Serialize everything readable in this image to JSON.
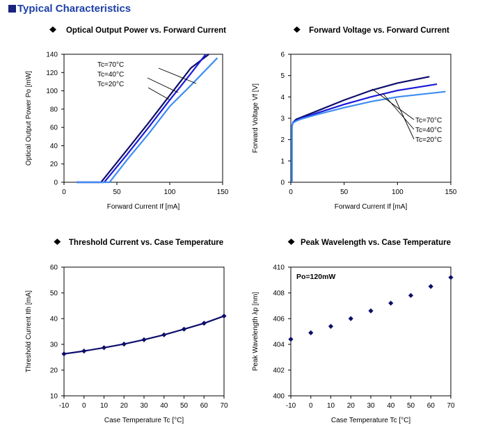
{
  "page": {
    "heading": "Typical Characteristics"
  },
  "colors": {
    "dark": "#0d0d6b",
    "mid": "#1a1ad9",
    "light": "#3d8df0",
    "marker": "#0d0d6b"
  },
  "chart_data": [
    {
      "type": "line",
      "title": "Optical Output Power vs. Forward Current",
      "xlabel": "Forward Current If [mA]",
      "ylabel": "Optical Output Power Po [mW]",
      "xlim": [
        0,
        150
      ],
      "ylim": [
        0,
        140
      ],
      "xticks": [
        0,
        50,
        100,
        150
      ],
      "yticks": [
        0,
        20,
        40,
        60,
        80,
        100,
        120,
        140
      ],
      "series": [
        {
          "name": "Tc=70°C",
          "x": [
            12,
            35,
            60,
            80,
            100,
            120,
            137
          ],
          "y": [
            0,
            0,
            36,
            65,
            95,
            125,
            140
          ]
        },
        {
          "name": "Tc=40°C",
          "x": [
            12,
            38,
            60,
            80,
            100,
            120,
            134
          ],
          "y": [
            0,
            0,
            31,
            60,
            90,
            119,
            140
          ]
        },
        {
          "name": "Tc=20°C",
          "x": [
            12,
            43,
            60,
            80,
            100,
            120,
            145
          ],
          "y": [
            0,
            0,
            25,
            53,
            83,
            106,
            136
          ]
        }
      ]
    },
    {
      "type": "line",
      "title": "Forward Voltage vs. Forward Current",
      "xlabel": "Forward Current If [mA]",
      "ylabel": "Forward Voltage Vf [V]",
      "xlim": [
        0,
        150
      ],
      "ylim": [
        0,
        6
      ],
      "xticks": [
        0,
        50,
        100,
        150
      ],
      "yticks": [
        0,
        1,
        2,
        3,
        4,
        5,
        6
      ],
      "series": [
        {
          "name": "Tc=70°C",
          "x": [
            1,
            1,
            2,
            5,
            10,
            25,
            50,
            75,
            100,
            130
          ],
          "y": [
            0,
            2.6,
            2.8,
            2.95,
            3.05,
            3.35,
            3.85,
            4.3,
            4.65,
            4.95
          ]
        },
        {
          "name": "Tc=40°C",
          "x": [
            1,
            1,
            2,
            5,
            10,
            25,
            50,
            75,
            100,
            137
          ],
          "y": [
            0,
            2.6,
            2.8,
            2.9,
            3.0,
            3.25,
            3.65,
            4.0,
            4.3,
            4.6
          ]
        },
        {
          "name": "Tc=20°C",
          "x": [
            1,
            1,
            2,
            5,
            10,
            25,
            50,
            75,
            100,
            145
          ],
          "y": [
            0,
            2.6,
            2.78,
            2.87,
            2.97,
            3.18,
            3.5,
            3.78,
            4.0,
            4.25
          ]
        }
      ]
    },
    {
      "type": "line",
      "title": "Threshold Current vs. Case Temperature",
      "xlabel": "Case Temperature Tc [°C]",
      "ylabel": "Threshold Current Ith [mA]",
      "xlim": [
        -10,
        70
      ],
      "ylim": [
        10,
        60
      ],
      "xticks": [
        -10,
        0,
        10,
        20,
        30,
        40,
        50,
        60,
        70
      ],
      "yticks": [
        10,
        20,
        30,
        40,
        50,
        60
      ],
      "series": [
        {
          "x": [
            -10,
            0,
            10,
            20,
            30,
            40,
            50,
            60,
            70
          ],
          "y": [
            26.3,
            27.4,
            28.7,
            30.1,
            31.8,
            33.7,
            35.9,
            38.2,
            41.0
          ]
        }
      ]
    },
    {
      "type": "scatter",
      "title": "Peak Wavelength vs. Case Temperature",
      "xlabel": "Case Temperature Tc [°C]",
      "ylabel": "Peak Wavelength λp [nm]",
      "annotation": "Po=120mW",
      "xlim": [
        -10,
        70
      ],
      "ylim": [
        400,
        410
      ],
      "xticks": [
        -10,
        0,
        10,
        20,
        30,
        40,
        50,
        60,
        70
      ],
      "yticks": [
        400,
        402,
        404,
        406,
        408,
        410
      ],
      "series": [
        {
          "x": [
            -10,
            0,
            10,
            20,
            30,
            40,
            50,
            60,
            70
          ],
          "y": [
            404.4,
            404.9,
            405.4,
            406.0,
            406.6,
            407.2,
            407.8,
            408.5,
            409.2
          ]
        }
      ]
    }
  ]
}
